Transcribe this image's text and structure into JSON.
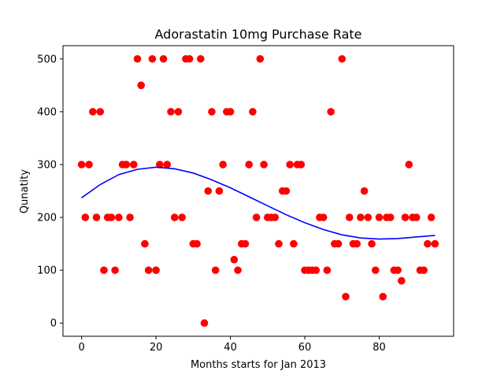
{
  "chart_data": {
    "type": "scatter",
    "title": "Adorastatin 10mg Purchase Rate",
    "xlabel": "Months starts for Jan 2013",
    "ylabel": "Qunatity",
    "xlim": [
      -5,
      100
    ],
    "ylim": [
      -25,
      525
    ],
    "xticks": [
      0,
      20,
      40,
      60,
      80
    ],
    "yticks": [
      0,
      100,
      200,
      300,
      400,
      500
    ],
    "grid": false,
    "series": [
      {
        "kind": "scatter",
        "color": "#ff0000",
        "x": [
          0,
          1,
          2,
          3,
          4,
          5,
          6,
          7,
          8,
          9,
          10,
          11,
          12,
          13,
          14,
          15,
          16,
          17,
          18,
          19,
          20,
          21,
          22,
          23,
          24,
          25,
          26,
          27,
          28,
          29,
          30,
          31,
          32,
          33,
          34,
          35,
          36,
          37,
          38,
          39,
          40,
          41,
          42,
          43,
          44,
          45,
          46,
          47,
          48,
          49,
          50,
          51,
          52,
          53,
          54,
          55,
          56,
          57,
          58,
          59,
          60,
          61,
          62,
          63,
          64,
          65,
          66,
          67,
          68,
          69,
          70,
          71,
          72,
          73,
          74,
          75,
          76,
          77,
          78,
          79,
          80,
          81,
          82,
          83,
          84,
          85,
          86,
          87,
          88,
          89,
          90,
          91,
          92,
          93,
          94,
          95
        ],
        "y": [
          300,
          200,
          300,
          400,
          200,
          400,
          100,
          200,
          200,
          100,
          200,
          300,
          300,
          200,
          300,
          500,
          450,
          150,
          100,
          500,
          100,
          300,
          500,
          300,
          400,
          200,
          400,
          200,
          500,
          500,
          150,
          150,
          500,
          0,
          250,
          400,
          100,
          250,
          300,
          400,
          400,
          120,
          100,
          150,
          150,
          300,
          400,
          200,
          500,
          300,
          200,
          200,
          200,
          150,
          250,
          250,
          300,
          150,
          300,
          300,
          100,
          100,
          100,
          100,
          200,
          200,
          100,
          400,
          150,
          150,
          500,
          50,
          200,
          150,
          150,
          200,
          250,
          200,
          150,
          100,
          200,
          50,
          200,
          200,
          100,
          100,
          80,
          200,
          300,
          200,
          200,
          100,
          100,
          150,
          200,
          150
        ]
      },
      {
        "kind": "line",
        "color": "#0000ff",
        "x": [
          0,
          5,
          10,
          15,
          20,
          25,
          30,
          35,
          40,
          45,
          50,
          55,
          60,
          65,
          70,
          75,
          80,
          85,
          90,
          95
        ],
        "y": [
          237,
          262,
          281,
          291,
          295,
          292,
          284,
          271,
          256,
          239,
          222,
          205,
          190,
          177,
          167,
          161,
          159,
          160,
          163,
          166
        ]
      }
    ]
  }
}
